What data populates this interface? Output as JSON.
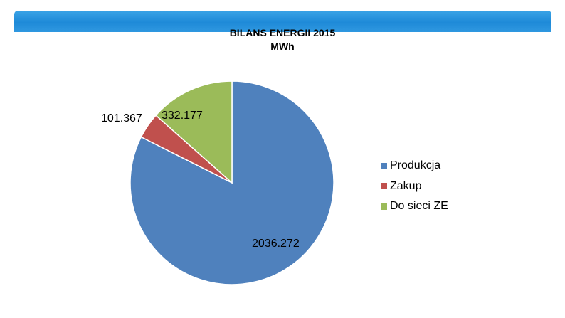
{
  "chart_data": {
    "type": "pie",
    "title": "BILANS ENERGII 2015",
    "subtitle": "MWh",
    "categories": [
      "Produkcja",
      "Zakup",
      "Do sieci ZE"
    ],
    "values": [
      2036.272,
      101.367,
      332.177
    ],
    "data_labels": [
      "2036.272",
      "101.367",
      "332.177"
    ],
    "colors": [
      "#4f81bd",
      "#c0504d",
      "#9bbb59"
    ],
    "legend_position": "right",
    "start_angle": "12 o'clock, clockwise"
  },
  "header": {
    "accent_color": "#1e8ad8"
  }
}
